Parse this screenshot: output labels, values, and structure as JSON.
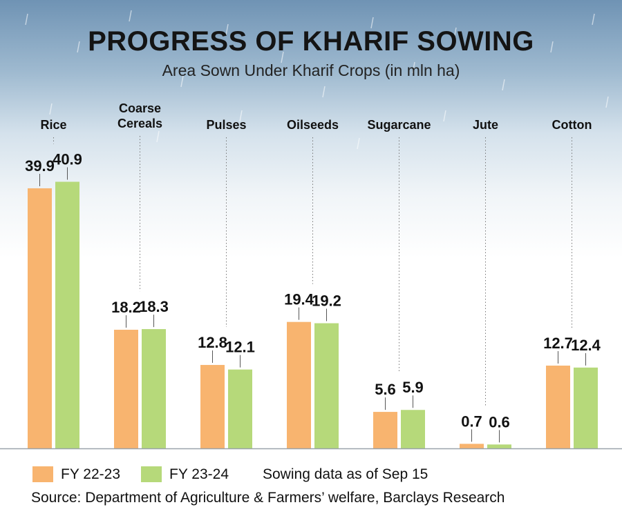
{
  "title": "PROGRESS OF KHARIF SOWING",
  "subtitle": "Area Sown Under Kharif Crops (in mln ha)",
  "note": "Sowing data as of Sep 15",
  "source": "Source: Department of Agriculture & Farmers’ welfare, Barclays Research",
  "colors": {
    "fy2223": "#f8b46f",
    "fy2324": "#b6d97a"
  },
  "chart_data": {
    "type": "bar",
    "title": "PROGRESS OF KHARIF SOWING",
    "subtitle": "Area Sown Under Kharif Crops (in mln ha)",
    "categories": [
      [
        "Rice"
      ],
      [
        "Coarse",
        "Cereals"
      ],
      [
        "Pulses"
      ],
      [
        "Oilseeds"
      ],
      [
        "Sugarcane"
      ],
      [
        "Jute"
      ],
      [
        "Cotton"
      ]
    ],
    "series": [
      {
        "name": "FY 22-23",
        "values": [
          39.9,
          18.2,
          12.8,
          19.4,
          5.6,
          0.7,
          12.7
        ]
      },
      {
        "name": "FY 23-24",
        "values": [
          40.9,
          18.3,
          12.1,
          19.2,
          5.9,
          0.6,
          12.4
        ]
      }
    ],
    "value_labels": [
      [
        "39.9",
        "18.2",
        "12.8",
        "19.4",
        "5.6",
        "0.7",
        "12.7"
      ],
      [
        "40.9",
        "18.3",
        "12.1",
        "19.2",
        "5.9",
        "0.6",
        "12.4"
      ]
    ],
    "xlabel": "",
    "ylabel": "",
    "legend": "bottom-left",
    "grid": false
  }
}
